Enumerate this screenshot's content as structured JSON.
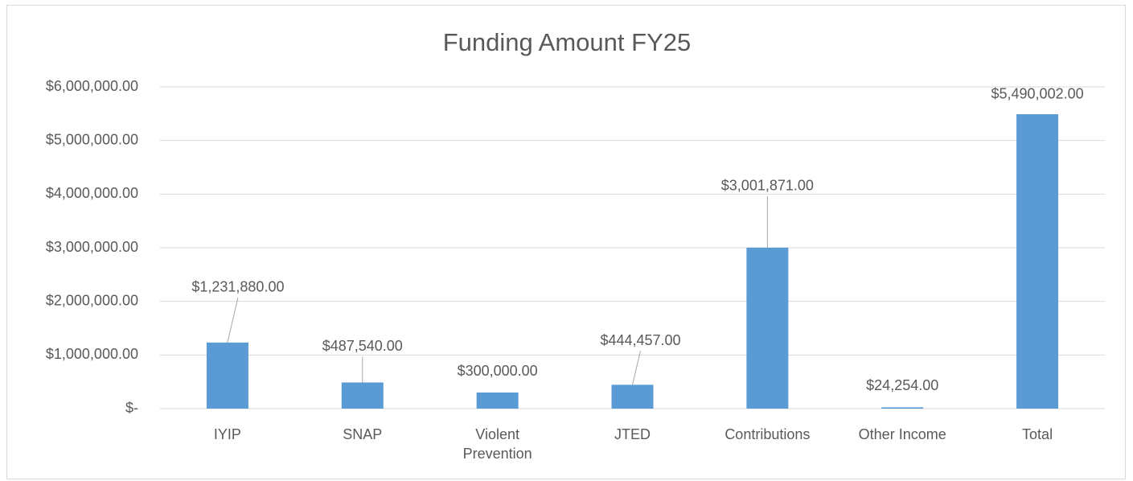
{
  "chart_data": {
    "type": "bar",
    "title": "Funding Amount FY25",
    "categories": [
      "IYIP",
      "SNAP",
      "Violent Prevention",
      "JTED",
      "Contributions",
      "Other Income",
      "Total"
    ],
    "values": [
      1231880,
      487540,
      300000,
      444457,
      3001871,
      24254,
      5490002
    ],
    "value_labels": [
      "$1,231,880.00",
      "$487,540.00",
      "$300,000.00",
      "$444,457.00",
      "$3,001,871.00",
      "$24,254.00",
      "$5,490,002.00"
    ],
    "color": "#5b9bd5",
    "ylim": [
      0,
      6000000
    ],
    "yticks": [
      {
        "value": 0,
        "label": "$-"
      },
      {
        "value": 1000000,
        "label": "$1,000,000.00"
      },
      {
        "value": 2000000,
        "label": "$2,000,000.00"
      },
      {
        "value": 3000000,
        "label": "$3,000,000.00"
      },
      {
        "value": 4000000,
        "label": "$4,000,000.00"
      },
      {
        "value": 5000000,
        "label": "$5,000,000.00"
      },
      {
        "value": 6000000,
        "label": "$6,000,000.00"
      }
    ],
    "grid": true
  }
}
